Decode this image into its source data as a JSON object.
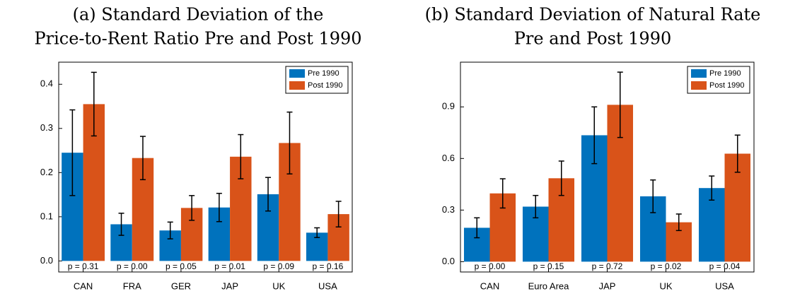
{
  "chart_data": [
    {
      "type": "bar",
      "title": [
        "(a) Standard Deviation of the",
        "Price-to-Rent Ratio Pre and Post 1990"
      ],
      "categories": [
        "CAN",
        "FRA",
        "GER",
        "JAP",
        "UK",
        "USA"
      ],
      "series": [
        {
          "name": "Pre 1990",
          "color": "#0072bd",
          "values": [
            0.245,
            0.083,
            0.069,
            0.121,
            0.151,
            0.064
          ],
          "errors": [
            0.097,
            0.025,
            0.019,
            0.032,
            0.038,
            0.011
          ]
        },
        {
          "name": "Post 1990",
          "color": "#d95319",
          "values": [
            0.355,
            0.233,
            0.12,
            0.236,
            0.267,
            0.106
          ],
          "errors": [
            0.072,
            0.049,
            0.028,
            0.05,
            0.07,
            0.029
          ]
        }
      ],
      "annotations": [
        "p = 0.31",
        "p = 0.00",
        "p = 0.05",
        "p = 0.01",
        "p = 0.09",
        "p = 0.16"
      ],
      "ylim": [
        -0.025,
        0.45
      ],
      "yticks": [
        {
          "value": 0,
          "label": "0.0"
        },
        0.1,
        0.2,
        0.3,
        0.4
      ],
      "legend": "top-right",
      "grid": false
    },
    {
      "type": "bar",
      "title": [
        "(b) Standard Deviation of Natural Rate",
        "Pre and Post 1990"
      ],
      "categories": [
        "CAN",
        "Euro Area",
        "JAP",
        "UK",
        "USA"
      ],
      "series": [
        {
          "name": "Pre 1990",
          "color": "#0072bd",
          "values": [
            0.197,
            0.32,
            0.735,
            0.38,
            0.428
          ],
          "errors": [
            0.058,
            0.065,
            0.165,
            0.095,
            0.07
          ]
        },
        {
          "name": "Post 1990",
          "color": "#d95319",
          "values": [
            0.397,
            0.485,
            0.912,
            0.229,
            0.628
          ],
          "errors": [
            0.085,
            0.1,
            0.19,
            0.048,
            0.108
          ]
        }
      ],
      "annotations": [
        "p = 0.00",
        "p = 0.15",
        "p = 0.72",
        "p = 0.02",
        "p = 0.04"
      ],
      "ylim": [
        -0.06,
        1.16
      ],
      "yticks": [
        {
          "value": 0,
          "label": "0.0"
        },
        0.3,
        0.6,
        0.9
      ],
      "legend": "top-right",
      "grid": false
    }
  ]
}
